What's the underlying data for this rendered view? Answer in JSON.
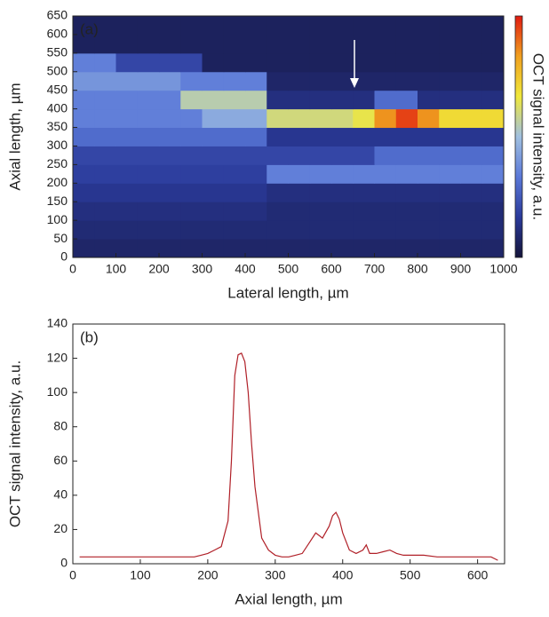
{
  "chart_data": [
    {
      "type": "heatmap",
      "panel_label": "(a)",
      "xlabel": "Lateral length, µm",
      "ylabel": "Axial length, µm",
      "colorbar_label": "OCT signal intensity, a.u.",
      "colormap": [
        "#14143a",
        "#2a3a9a",
        "#5a78d8",
        "#a0c0e0",
        "#f0e83a",
        "#f0a020",
        "#e01a10"
      ],
      "zlim": [
        0,
        1
      ],
      "xlim": [
        0,
        1000
      ],
      "ylim": [
        0,
        650
      ],
      "xticks": [
        0,
        100,
        200,
        300,
        400,
        500,
        600,
        700,
        800,
        900,
        1000
      ],
      "yticks": [
        0,
        50,
        100,
        150,
        200,
        250,
        300,
        350,
        400,
        450,
        500,
        550,
        600,
        650
      ],
      "x_bins": [
        0,
        50,
        100,
        150,
        200,
        250,
        300,
        350,
        400,
        450,
        500,
        550,
        600,
        650,
        700,
        750,
        800,
        850,
        900,
        950,
        1000
      ],
      "y_bins": [
        0,
        50,
        100,
        150,
        200,
        250,
        300,
        350,
        400,
        450,
        500,
        550,
        600,
        650
      ],
      "z": [
        [
          0.08,
          0.08,
          0.08,
          0.08,
          0.08,
          0.08,
          0.08,
          0.08,
          0.08,
          0.08,
          0.08,
          0.08,
          0.08,
          0.08,
          0.08,
          0.08,
          0.08,
          0.08,
          0.08,
          0.08
        ],
        [
          0.1,
          0.1,
          0.1,
          0.1,
          0.1,
          0.1,
          0.1,
          0.1,
          0.1,
          0.1,
          0.1,
          0.1,
          0.1,
          0.1,
          0.1,
          0.1,
          0.1,
          0.1,
          0.1,
          0.1
        ],
        [
          0.12,
          0.12,
          0.12,
          0.12,
          0.12,
          0.12,
          0.12,
          0.12,
          0.12,
          0.1,
          0.1,
          0.1,
          0.1,
          0.1,
          0.1,
          0.1,
          0.1,
          0.1,
          0.1,
          0.1
        ],
        [
          0.15,
          0.15,
          0.15,
          0.15,
          0.15,
          0.15,
          0.15,
          0.15,
          0.15,
          0.12,
          0.12,
          0.12,
          0.12,
          0.12,
          0.12,
          0.12,
          0.12,
          0.12,
          0.12,
          0.12
        ],
        [
          0.18,
          0.18,
          0.18,
          0.18,
          0.18,
          0.18,
          0.18,
          0.18,
          0.18,
          0.35,
          0.35,
          0.35,
          0.35,
          0.35,
          0.35,
          0.35,
          0.35,
          0.35,
          0.35,
          0.35
        ],
        [
          0.2,
          0.2,
          0.2,
          0.2,
          0.2,
          0.2,
          0.2,
          0.2,
          0.2,
          0.2,
          0.2,
          0.2,
          0.2,
          0.2,
          0.3,
          0.3,
          0.3,
          0.3,
          0.3,
          0.3
        ],
        [
          0.3,
          0.3,
          0.3,
          0.3,
          0.3,
          0.3,
          0.3,
          0.3,
          0.3,
          0.15,
          0.15,
          0.15,
          0.15,
          0.15,
          0.15,
          0.15,
          0.15,
          0.15,
          0.15,
          0.15
        ],
        [
          0.35,
          0.35,
          0.35,
          0.35,
          0.35,
          0.35,
          0.45,
          0.45,
          0.45,
          0.6,
          0.6,
          0.6,
          0.6,
          0.65,
          0.85,
          0.95,
          0.85,
          0.7,
          0.7,
          0.7
        ],
        [
          0.35,
          0.35,
          0.35,
          0.35,
          0.35,
          0.55,
          0.55,
          0.55,
          0.55,
          0.12,
          0.12,
          0.12,
          0.12,
          0.12,
          0.3,
          0.3,
          0.12,
          0.12,
          0.12,
          0.12
        ],
        [
          0.4,
          0.4,
          0.4,
          0.4,
          0.4,
          0.35,
          0.35,
          0.35,
          0.35,
          0.08,
          0.08,
          0.08,
          0.08,
          0.08,
          0.08,
          0.08,
          0.08,
          0.08,
          0.08,
          0.08
        ],
        [
          0.35,
          0.35,
          0.2,
          0.2,
          0.2,
          0.2,
          0.06,
          0.06,
          0.06,
          0.06,
          0.06,
          0.06,
          0.06,
          0.06,
          0.06,
          0.06,
          0.06,
          0.06,
          0.06,
          0.06
        ],
        [
          0.06,
          0.06,
          0.06,
          0.06,
          0.06,
          0.06,
          0.06,
          0.06,
          0.06,
          0.06,
          0.06,
          0.06,
          0.06,
          0.06,
          0.06,
          0.06,
          0.06,
          0.06,
          0.06,
          0.06
        ],
        [
          0.06,
          0.06,
          0.06,
          0.06,
          0.06,
          0.06,
          0.06,
          0.06,
          0.06,
          0.06,
          0.06,
          0.06,
          0.06,
          0.06,
          0.06,
          0.06,
          0.06,
          0.06,
          0.06,
          0.06
        ]
      ]
    },
    {
      "type": "line",
      "panel_label": "(b)",
      "xlabel": "Axial length, µm",
      "ylabel": "OCT signal intensity, a.u.",
      "color": "#b02028",
      "xlim": [
        0,
        640
      ],
      "ylim": [
        0,
        140
      ],
      "xticks": [
        0,
        100,
        200,
        300,
        400,
        500,
        600
      ],
      "yticks": [
        0,
        20,
        40,
        60,
        80,
        100,
        120,
        140
      ],
      "x": [
        10,
        20,
        30,
        40,
        50,
        60,
        70,
        80,
        90,
        100,
        110,
        120,
        130,
        140,
        150,
        160,
        170,
        180,
        190,
        200,
        210,
        220,
        230,
        235,
        240,
        245,
        250,
        255,
        260,
        265,
        270,
        280,
        290,
        300,
        310,
        320,
        330,
        340,
        350,
        360,
        370,
        380,
        385,
        390,
        395,
        400,
        410,
        420,
        430,
        435,
        440,
        450,
        460,
        470,
        480,
        490,
        500,
        520,
        540,
        560,
        580,
        600,
        620,
        630
      ],
      "y": [
        4,
        4,
        4,
        4,
        4,
        4,
        4,
        4,
        4,
        4,
        4,
        4,
        4,
        4,
        4,
        4,
        4,
        4,
        5,
        6,
        8,
        10,
        25,
        60,
        110,
        122,
        123,
        118,
        100,
        70,
        45,
        15,
        8,
        5,
        4,
        4,
        5,
        6,
        12,
        18,
        15,
        22,
        28,
        30,
        26,
        18,
        8,
        6,
        8,
        11,
        6,
        6,
        7,
        8,
        6,
        5,
        5,
        5,
        4,
        4,
        4,
        4,
        4,
        2
      ]
    }
  ]
}
